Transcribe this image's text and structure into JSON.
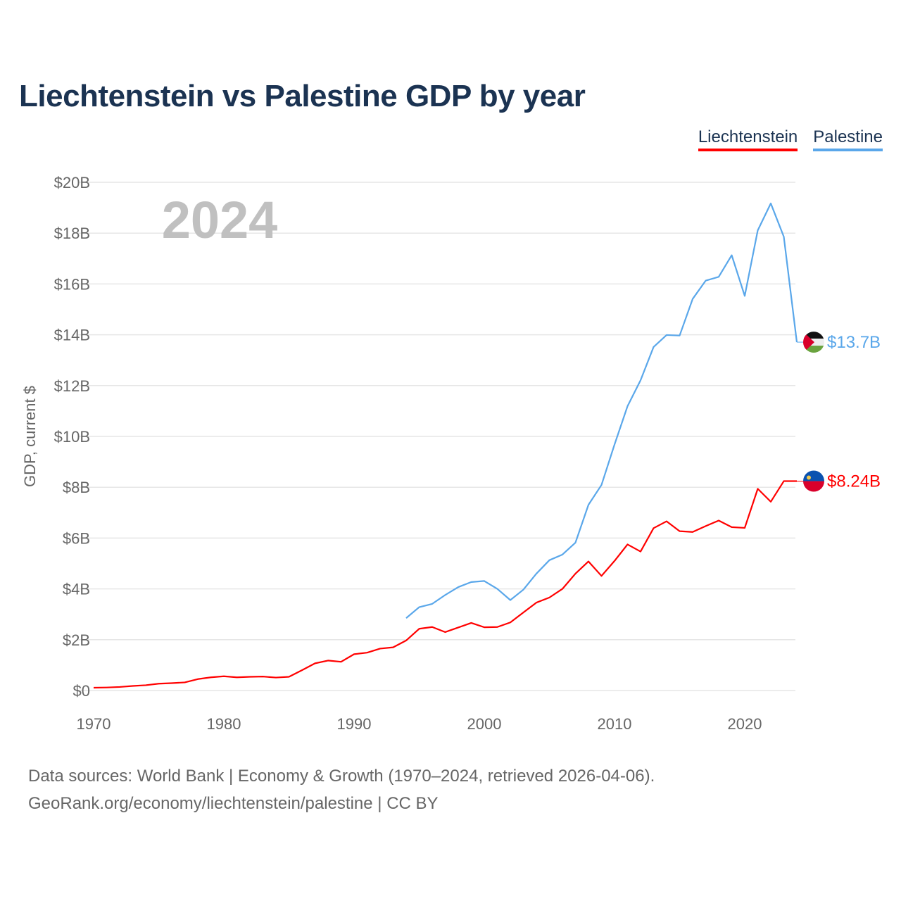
{
  "colors": {
    "liechtenstein": "#ff0000",
    "palestine": "#5aa7ea",
    "title": "#1b3352"
  },
  "chart_data": {
    "type": "line",
    "title": "Liechtenstein vs Palestine GDP by year",
    "ylabel": "GDP, current $",
    "xlabel": "",
    "year_overlay": "2024",
    "xlim": [
      1970,
      2024
    ],
    "ylim": [
      0,
      20
    ],
    "x_ticks": [
      "1970",
      "1980",
      "1990",
      "2000",
      "2010",
      "2020"
    ],
    "y_ticks": [
      "$0",
      "$2B",
      "$4B",
      "$6B",
      "$8B",
      "$10B",
      "$12B",
      "$14B",
      "$16B",
      "$18B",
      "$20B"
    ],
    "grid": true,
    "legend_placement": "top-right",
    "series": [
      {
        "name": "Liechtenstein",
        "color": "#ff0000",
        "end_label": "$8.24B",
        "x_start": 1970,
        "values": [
          0.11,
          0.12,
          0.14,
          0.18,
          0.21,
          0.27,
          0.29,
          0.32,
          0.45,
          0.52,
          0.56,
          0.52,
          0.54,
          0.55,
          0.51,
          0.54,
          0.8,
          1.07,
          1.18,
          1.13,
          1.43,
          1.49,
          1.65,
          1.7,
          1.97,
          2.43,
          2.5,
          2.3,
          2.48,
          2.66,
          2.49,
          2.5,
          2.68,
          3.07,
          3.46,
          3.66,
          4.0,
          4.6,
          5.08,
          4.51,
          5.1,
          5.75,
          5.47,
          6.39,
          6.66,
          6.27,
          6.24,
          6.47,
          6.69,
          6.43,
          6.4,
          7.94,
          7.43,
          8.24,
          8.24
        ]
      },
      {
        "name": "Palestine",
        "color": "#5aa7ea",
        "end_label": "$13.7B",
        "x_start": 1994,
        "values": [
          2.85,
          3.28,
          3.41,
          3.76,
          4.07,
          4.27,
          4.31,
          4.0,
          3.56,
          3.97,
          4.6,
          5.13,
          5.35,
          5.82,
          7.31,
          8.09,
          9.68,
          11.19,
          12.21,
          13.52,
          13.99,
          13.97,
          15.41,
          16.13,
          16.28,
          17.13,
          15.53,
          18.11,
          19.17,
          17.86,
          13.71
        ]
      }
    ]
  },
  "footer": {
    "line1": "Data sources: World Bank | Economy & Growth (1970–2024, retrieved 2026-04-06).",
    "line2": "GeoRank.org/economy/liechtenstein/palestine | CC BY"
  }
}
